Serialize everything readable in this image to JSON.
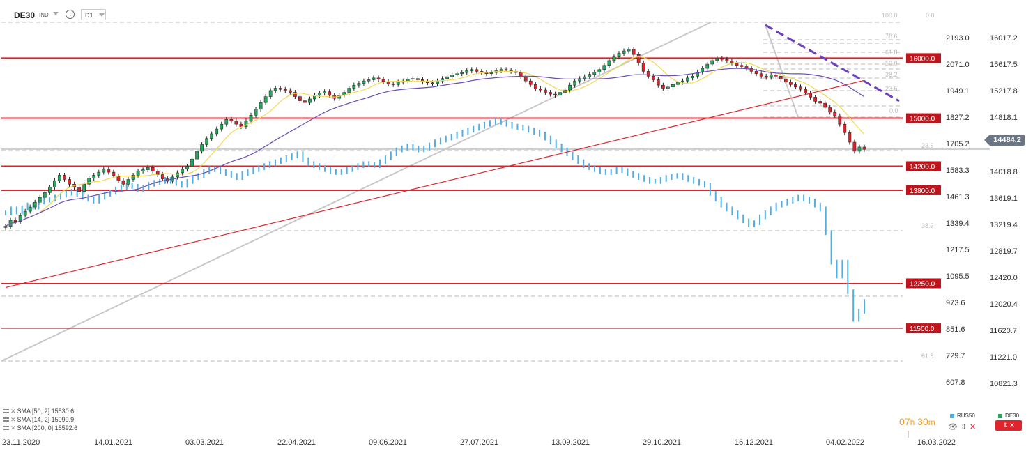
{
  "header": {
    "symbol": "DE30",
    "type": "IND",
    "info_icon": "info-icon",
    "timeframe": "D1"
  },
  "chart_data": {
    "type": "candlestick",
    "main_series": "DE30",
    "overlay_series": "RUS50",
    "x_axis_labels": [
      "23.11.2020",
      "14.01.2021",
      "03.03.2021",
      "22.04.2021",
      "09.06.2021",
      "27.07.2021",
      "13.09.2021",
      "29.10.2021",
      "16.12.2021",
      "04.02.2022",
      "16.03.2022"
    ],
    "y_axis_right": [
      "16017.2",
      "15617.5",
      "15217.8",
      "14818.1",
      "14018.8",
      "13619.1",
      "13219.4",
      "12819.7",
      "12420.0",
      "12020.4",
      "11620.7",
      "11221.0",
      "10821.3"
    ],
    "y_axis_left": [
      "2193.0",
      "2071.0",
      "1949.1",
      "1827.2",
      "1705.2",
      "1583.3",
      "1461.3",
      "1339.4",
      "1217.5",
      "1095.5",
      "973.6",
      "851.6",
      "729.7",
      "607.8"
    ],
    "ylim_de30": [
      10700,
      16620
    ],
    "ylim_rus50": [
      570,
      2375
    ],
    "last_price": "14484.2",
    "horizontal_levels": [
      "16000.0",
      "15000.0",
      "14200.0",
      "13800.0",
      "12250.0",
      "11500.0"
    ],
    "fib_labels_upper": [
      "100.0",
      "0.0",
      "78.6",
      "61.8",
      "50.0",
      "38.2",
      "23.6",
      "0.0"
    ],
    "fib_labels_lower": [
      "23.6",
      "38.2",
      "61.8"
    ],
    "de30_closes": [
      13200,
      13300,
      13280,
      13380,
      13450,
      13520,
      13600,
      13680,
      13760,
      13850,
      13960,
      14050,
      13980,
      13900,
      13850,
      13780,
      13900,
      14000,
      14050,
      14100,
      14150,
      14100,
      14040,
      13960,
      13900,
      13980,
      14050,
      14120,
      14140,
      14180,
      14120,
      14060,
      13990,
      13950,
      14020,
      14090,
      14150,
      14200,
      14320,
      14450,
      14560,
      14660,
      14740,
      14820,
      14900,
      14980,
      14950,
      14900,
      14860,
      14950,
      15050,
      15150,
      15260,
      15360,
      15460,
      15500,
      15480,
      15460,
      15430,
      15360,
      15290,
      15260,
      15320,
      15380,
      15420,
      15440,
      15380,
      15330,
      15380,
      15430,
      15500,
      15550,
      15580,
      15620,
      15640,
      15670,
      15650,
      15610,
      15570,
      15560,
      15600,
      15620,
      15650,
      15660,
      15640,
      15610,
      15590,
      15580,
      15620,
      15660,
      15690,
      15720,
      15740,
      15760,
      15790,
      15810,
      15780,
      15760,
      15740,
      15760,
      15790,
      15810,
      15800,
      15780,
      15760,
      15690,
      15620,
      15560,
      15490,
      15470,
      15430,
      15400,
      15380,
      15430,
      15470,
      15550,
      15620,
      15660,
      15690,
      15730,
      15770,
      15810,
      15880,
      15960,
      16020,
      16080,
      16120,
      16150,
      16060,
      15920,
      15780,
      15700,
      15640,
      15550,
      15500,
      15520,
      15560,
      15600,
      15620,
      15670,
      15700,
      15770,
      15830,
      15900,
      15960,
      16000,
      15980,
      15950,
      15920,
      15880,
      15860,
      15830,
      15780,
      15740,
      15700,
      15680,
      15720,
      15700,
      15650,
      15600,
      15560,
      15520,
      15480,
      15420,
      15350,
      15280,
      15250,
      15180,
      15100,
      15040,
      14900,
      14760,
      14600,
      14450,
      14520,
      14480
    ],
    "rus50_closes": [
      1400,
      1420,
      1405,
      1425,
      1440,
      1430,
      1455,
      1465,
      1470,
      1480,
      1490,
      1500,
      1510,
      1495,
      1480,
      1470,
      1460,
      1480,
      1495,
      1505,
      1520,
      1530,
      1540,
      1535,
      1520,
      1530,
      1545,
      1555,
      1560,
      1570,
      1560,
      1550,
      1540,
      1560,
      1580,
      1590,
      1610,
      1625,
      1620,
      1610,
      1600,
      1590,
      1580,
      1600,
      1610,
      1620,
      1630,
      1640,
      1650,
      1660,
      1670,
      1680,
      1690,
      1700,
      1670,
      1650,
      1640,
      1630,
      1620,
      1610,
      1605,
      1610,
      1620,
      1630,
      1640,
      1650,
      1645,
      1640,
      1660,
      1680,
      1700,
      1720,
      1730,
      1740,
      1730,
      1720,
      1730,
      1745,
      1760,
      1770,
      1780,
      1790,
      1800,
      1810,
      1820,
      1830,
      1840,
      1850,
      1860,
      1870,
      1860,
      1850,
      1840,
      1835,
      1830,
      1820,
      1810,
      1800,
      1780,
      1760,
      1740,
      1720,
      1700,
      1680,
      1660,
      1640,
      1630,
      1620,
      1610,
      1605,
      1610,
      1620,
      1615,
      1600,
      1590,
      1580,
      1570,
      1560,
      1560,
      1570,
      1580,
      1585,
      1590,
      1580,
      1570,
      1560,
      1550,
      1540,
      1500,
      1470,
      1440,
      1420,
      1400,
      1380,
      1360,
      1340,
      1350,
      1380,
      1400,
      1420,
      1440,
      1450,
      1460,
      1470,
      1480,
      1470,
      1460,
      1440,
      1420,
      1300,
      1150,
      1080,
      1150,
      1000,
      860,
      900,
      950
    ],
    "sma_50": "SMA [50, 2] 15530.6",
    "sma_14": "SMA [14, 2] 15099.9",
    "sma_200": "SMA [200, 0] 15592.6"
  },
  "footer": {
    "countdown_h": "07",
    "countdown_h_unit": "h",
    "countdown_m": "30",
    "countdown_m_unit": "m",
    "legend_rus50": "RUS50",
    "legend_de30": "DE30",
    "rus50_color": "#4db0e4",
    "de30_color": "#26a65b",
    "bull_color": "#26a65b",
    "bear_color": "#d9262e"
  }
}
